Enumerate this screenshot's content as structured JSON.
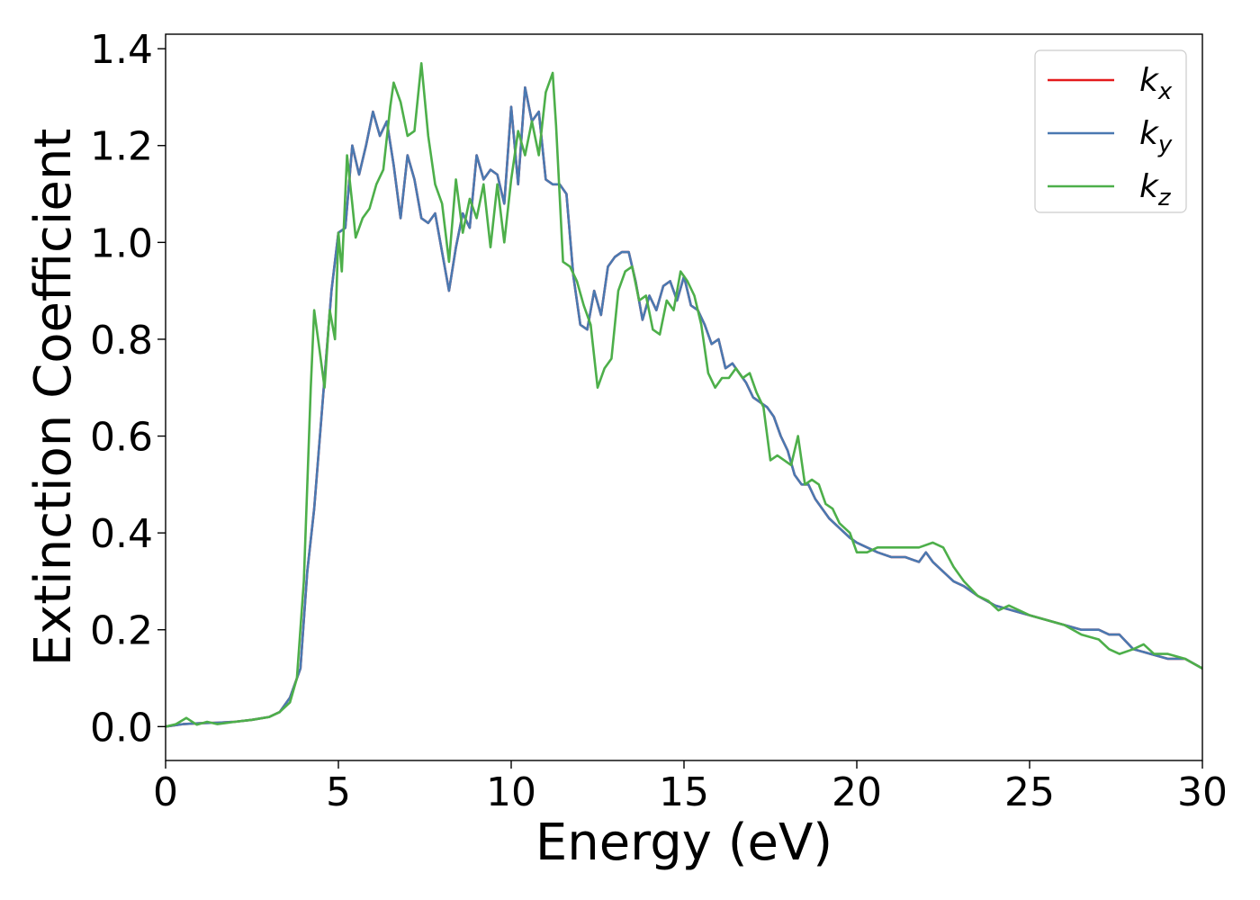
{
  "chart_data": {
    "type": "line",
    "xlabel": "Energy (eV)",
    "ylabel": "Extinction Coefficient",
    "xlim": [
      0,
      30
    ],
    "ylim": [
      -0.07,
      1.43
    ],
    "xticks": [
      0,
      5,
      10,
      15,
      20,
      25,
      30
    ],
    "xtick_labels": [
      "0",
      "5",
      "10",
      "15",
      "20",
      "25",
      "30"
    ],
    "yticks": [
      0.0,
      0.2,
      0.4,
      0.6,
      0.8,
      1.0,
      1.2,
      1.4
    ],
    "ytick_labels": [
      "0.0",
      "0.2",
      "0.4",
      "0.6",
      "0.8",
      "1.0",
      "1.2",
      "1.4"
    ],
    "grid": false,
    "legend_position": "top-right",
    "series": [
      {
        "name": "kx",
        "label_base": "k",
        "label_sub": "x",
        "color": "#e41a1c",
        "x": [
          0,
          0.5,
          1,
          1.5,
          2,
          2.5,
          3,
          3.3,
          3.6,
          3.9,
          4.1,
          4.3,
          4.6,
          4.8,
          5.0,
          5.2,
          5.4,
          5.6,
          5.8,
          6.0,
          6.2,
          6.4,
          6.6,
          6.8,
          7.0,
          7.2,
          7.4,
          7.6,
          7.8,
          8.0,
          8.2,
          8.4,
          8.6,
          8.8,
          9.0,
          9.2,
          9.4,
          9.6,
          9.8,
          10.0,
          10.2,
          10.4,
          10.6,
          10.8,
          11.0,
          11.2,
          11.4,
          11.6,
          11.8,
          12.0,
          12.2,
          12.4,
          12.6,
          12.8,
          13.0,
          13.2,
          13.4,
          13.6,
          13.8,
          14.0,
          14.2,
          14.4,
          14.6,
          14.8,
          15.0,
          15.2,
          15.4,
          15.6,
          15.8,
          16.0,
          16.2,
          16.4,
          16.6,
          16.8,
          17.0,
          17.2,
          17.4,
          17.6,
          17.8,
          18.0,
          18.2,
          18.4,
          18.6,
          18.8,
          19.0,
          19.2,
          19.5,
          19.8,
          20.0,
          20.3,
          20.6,
          21.0,
          21.4,
          21.8,
          22.0,
          22.2,
          22.5,
          22.8,
          23.1,
          23.5,
          24.0,
          24.5,
          25.0,
          25.5,
          26.0,
          26.5,
          27.0,
          27.3,
          27.6,
          28.0,
          28.5,
          29.0,
          29.5,
          30.0
        ],
        "y": [
          0.0,
          0.005,
          0.007,
          0.008,
          0.01,
          0.014,
          0.02,
          0.03,
          0.06,
          0.12,
          0.32,
          0.45,
          0.72,
          0.9,
          1.02,
          1.03,
          1.2,
          1.14,
          1.2,
          1.27,
          1.22,
          1.25,
          1.16,
          1.05,
          1.18,
          1.13,
          1.05,
          1.04,
          1.06,
          0.98,
          0.9,
          0.99,
          1.06,
          1.03,
          1.18,
          1.13,
          1.15,
          1.14,
          1.08,
          1.28,
          1.12,
          1.32,
          1.25,
          1.27,
          1.13,
          1.12,
          1.12,
          1.1,
          0.93,
          0.83,
          0.82,
          0.9,
          0.85,
          0.95,
          0.97,
          0.98,
          0.98,
          0.92,
          0.84,
          0.89,
          0.86,
          0.91,
          0.92,
          0.88,
          0.93,
          0.87,
          0.86,
          0.83,
          0.79,
          0.8,
          0.74,
          0.75,
          0.73,
          0.71,
          0.68,
          0.67,
          0.66,
          0.64,
          0.6,
          0.57,
          0.52,
          0.5,
          0.5,
          0.47,
          0.45,
          0.43,
          0.41,
          0.39,
          0.38,
          0.37,
          0.36,
          0.35,
          0.35,
          0.34,
          0.36,
          0.34,
          0.32,
          0.3,
          0.29,
          0.27,
          0.25,
          0.24,
          0.23,
          0.22,
          0.21,
          0.2,
          0.2,
          0.19,
          0.19,
          0.16,
          0.15,
          0.14,
          0.14,
          0.12
        ]
      },
      {
        "name": "ky",
        "label_base": "k",
        "label_sub": "y",
        "color": "#4a79b1",
        "x": [
          0,
          0.5,
          1,
          1.5,
          2,
          2.5,
          3,
          3.3,
          3.6,
          3.9,
          4.1,
          4.3,
          4.6,
          4.8,
          5.0,
          5.2,
          5.4,
          5.6,
          5.8,
          6.0,
          6.2,
          6.4,
          6.6,
          6.8,
          7.0,
          7.2,
          7.4,
          7.6,
          7.8,
          8.0,
          8.2,
          8.4,
          8.6,
          8.8,
          9.0,
          9.2,
          9.4,
          9.6,
          9.8,
          10.0,
          10.2,
          10.4,
          10.6,
          10.8,
          11.0,
          11.2,
          11.4,
          11.6,
          11.8,
          12.0,
          12.2,
          12.4,
          12.6,
          12.8,
          13.0,
          13.2,
          13.4,
          13.6,
          13.8,
          14.0,
          14.2,
          14.4,
          14.6,
          14.8,
          15.0,
          15.2,
          15.4,
          15.6,
          15.8,
          16.0,
          16.2,
          16.4,
          16.6,
          16.8,
          17.0,
          17.2,
          17.4,
          17.6,
          17.8,
          18.0,
          18.2,
          18.4,
          18.6,
          18.8,
          19.0,
          19.2,
          19.5,
          19.8,
          20.0,
          20.3,
          20.6,
          21.0,
          21.4,
          21.8,
          22.0,
          22.2,
          22.5,
          22.8,
          23.1,
          23.5,
          24.0,
          24.5,
          25.0,
          25.5,
          26.0,
          26.5,
          27.0,
          27.3,
          27.6,
          28.0,
          28.5,
          29.0,
          29.5,
          30.0
        ],
        "y": [
          0.0,
          0.005,
          0.007,
          0.008,
          0.01,
          0.014,
          0.02,
          0.03,
          0.06,
          0.12,
          0.32,
          0.45,
          0.72,
          0.9,
          1.02,
          1.03,
          1.2,
          1.14,
          1.2,
          1.27,
          1.22,
          1.25,
          1.16,
          1.05,
          1.18,
          1.13,
          1.05,
          1.04,
          1.06,
          0.98,
          0.9,
          0.99,
          1.06,
          1.03,
          1.18,
          1.13,
          1.15,
          1.14,
          1.08,
          1.28,
          1.12,
          1.32,
          1.25,
          1.27,
          1.13,
          1.12,
          1.12,
          1.1,
          0.93,
          0.83,
          0.82,
          0.9,
          0.85,
          0.95,
          0.97,
          0.98,
          0.98,
          0.92,
          0.84,
          0.89,
          0.86,
          0.91,
          0.92,
          0.88,
          0.93,
          0.87,
          0.86,
          0.83,
          0.79,
          0.8,
          0.74,
          0.75,
          0.73,
          0.71,
          0.68,
          0.67,
          0.66,
          0.64,
          0.6,
          0.57,
          0.52,
          0.5,
          0.5,
          0.47,
          0.45,
          0.43,
          0.41,
          0.39,
          0.38,
          0.37,
          0.36,
          0.35,
          0.35,
          0.34,
          0.36,
          0.34,
          0.32,
          0.3,
          0.29,
          0.27,
          0.25,
          0.24,
          0.23,
          0.22,
          0.21,
          0.2,
          0.2,
          0.19,
          0.19,
          0.16,
          0.15,
          0.14,
          0.14,
          0.12
        ]
      },
      {
        "name": "kz",
        "label_base": "k",
        "label_sub": "z",
        "color": "#4daf4a",
        "x": [
          0,
          0.3,
          0.6,
          0.9,
          1.2,
          1.5,
          2,
          2.5,
          3,
          3.3,
          3.6,
          3.8,
          4.0,
          4.2,
          4.3,
          4.45,
          4.6,
          4.75,
          4.9,
          5.0,
          5.1,
          5.25,
          5.4,
          5.5,
          5.7,
          5.9,
          6.1,
          6.3,
          6.5,
          6.6,
          6.8,
          7.0,
          7.2,
          7.4,
          7.6,
          7.8,
          8.0,
          8.2,
          8.4,
          8.6,
          8.8,
          9.0,
          9.2,
          9.4,
          9.6,
          9.8,
          10.0,
          10.2,
          10.4,
          10.6,
          10.8,
          11.0,
          11.2,
          11.3,
          11.5,
          11.7,
          11.9,
          12.1,
          12.3,
          12.5,
          12.7,
          12.9,
          13.1,
          13.3,
          13.5,
          13.7,
          13.9,
          14.1,
          14.3,
          14.5,
          14.7,
          14.9,
          15.1,
          15.3,
          15.5,
          15.7,
          15.9,
          16.1,
          16.3,
          16.5,
          16.7,
          16.9,
          17.1,
          17.3,
          17.5,
          17.7,
          17.9,
          18.1,
          18.3,
          18.5,
          18.7,
          18.9,
          19.1,
          19.3,
          19.5,
          19.8,
          20.0,
          20.3,
          20.6,
          21.0,
          21.4,
          21.8,
          22.2,
          22.5,
          22.8,
          23.1,
          23.5,
          23.8,
          24.1,
          24.4,
          24.7,
          25.0,
          25.5,
          26.0,
          26.5,
          27.0,
          27.3,
          27.6,
          28.0,
          28.3,
          28.6,
          29.0,
          29.5,
          30.0
        ],
        "y": [
          0.0,
          0.005,
          0.018,
          0.004,
          0.01,
          0.005,
          0.01,
          0.014,
          0.02,
          0.03,
          0.05,
          0.1,
          0.3,
          0.7,
          0.86,
          0.78,
          0.7,
          0.86,
          0.8,
          1.02,
          0.94,
          1.18,
          1.08,
          1.01,
          1.05,
          1.07,
          1.12,
          1.15,
          1.28,
          1.33,
          1.29,
          1.22,
          1.23,
          1.37,
          1.22,
          1.12,
          1.08,
          0.96,
          1.13,
          1.02,
          1.09,
          1.05,
          1.12,
          0.99,
          1.12,
          1.0,
          1.13,
          1.23,
          1.18,
          1.25,
          1.18,
          1.31,
          1.35,
          1.24,
          0.96,
          0.95,
          0.92,
          0.87,
          0.83,
          0.7,
          0.74,
          0.76,
          0.9,
          0.94,
          0.95,
          0.88,
          0.89,
          0.82,
          0.81,
          0.88,
          0.86,
          0.94,
          0.92,
          0.89,
          0.83,
          0.73,
          0.7,
          0.72,
          0.72,
          0.74,
          0.72,
          0.73,
          0.69,
          0.66,
          0.55,
          0.56,
          0.55,
          0.54,
          0.6,
          0.5,
          0.51,
          0.5,
          0.46,
          0.45,
          0.42,
          0.4,
          0.36,
          0.36,
          0.37,
          0.37,
          0.37,
          0.37,
          0.38,
          0.37,
          0.33,
          0.3,
          0.27,
          0.26,
          0.24,
          0.25,
          0.24,
          0.23,
          0.22,
          0.21,
          0.19,
          0.18,
          0.16,
          0.15,
          0.16,
          0.17,
          0.15,
          0.15,
          0.14,
          0.12
        ]
      }
    ]
  }
}
